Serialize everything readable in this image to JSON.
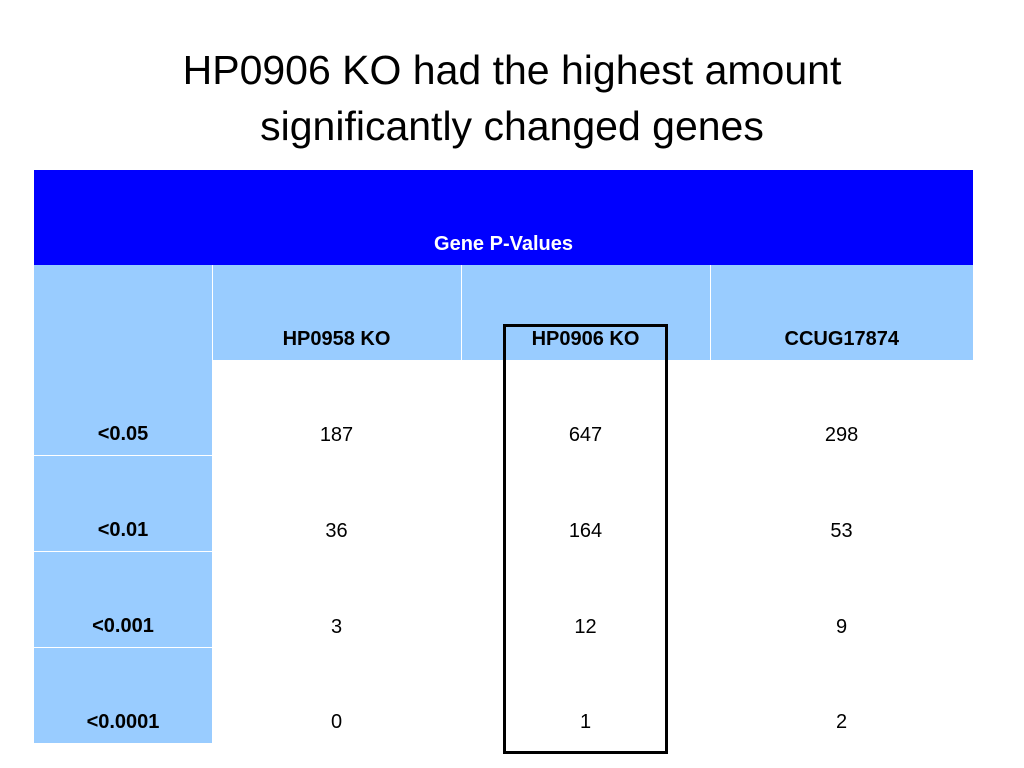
{
  "slide": {
    "title_line1": "HP0906 KO had the highest amount",
    "title_line2": "significantly changed genes"
  },
  "table": {
    "banner": "Gene P-Values",
    "columns": [
      "",
      "HP0958 KO",
      "HP0906 KO",
      "CCUG17874"
    ],
    "rows": [
      {
        "label": "<0.05",
        "values": [
          "187",
          "647",
          "298"
        ]
      },
      {
        "label": "<0.01",
        "values": [
          "36",
          "164",
          "53"
        ]
      },
      {
        "label": "<0.001",
        "values": [
          "3",
          "12",
          "9"
        ]
      },
      {
        "label": "<0.0001",
        "values": [
          "0",
          "1",
          "2"
        ]
      }
    ],
    "highlighted_column": "HP0906 KO"
  },
  "colors": {
    "banner_bg": "#0000ff",
    "header_bg": "#99ccff",
    "highlight_border": "#000000"
  }
}
